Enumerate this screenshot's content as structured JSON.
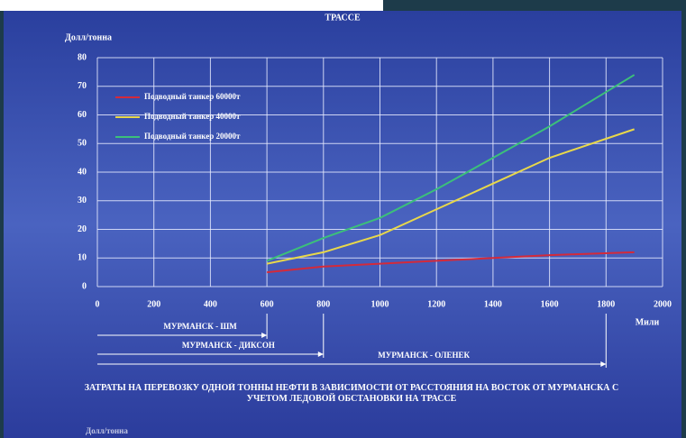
{
  "chart_data": {
    "type": "line",
    "title": "ТРАССЕ",
    "y_label": "Долл/тонна",
    "x_label": "Мили",
    "footer": "Долл/тонна",
    "caption": "ЗАТРАТЫ НА ПЕРЕВОЗКУ ОДНОЙ ТОННЫ НЕФТИ В ЗАВИСИМОСТИ ОТ РАССТОЯНИЯ НА ВОСТОК ОТ МУРМАНСКА С УЧЕТОМ ЛЕДОВОЙ ОБСТАНОВКИ НА ТРАССЕ",
    "x": [
      600,
      800,
      1000,
      1200,
      1400,
      1600,
      1900
    ],
    "series": [
      {
        "name": "Подводный танкер 60000т",
        "color": "#d42a3a",
        "values": [
          5,
          7,
          8,
          9,
          10,
          11,
          12
        ]
      },
      {
        "name": "Подводный танкер 40000т",
        "color": "#e8d84a",
        "values": [
          8,
          12,
          18,
          27,
          36,
          45,
          55
        ]
      },
      {
        "name": "Подводный танкер 20000т",
        "color": "#3cc07a",
        "values": [
          9,
          17,
          24,
          34,
          45,
          56,
          74
        ]
      }
    ],
    "xlim": [
      0,
      2000
    ],
    "xticks": [
      0,
      200,
      400,
      600,
      800,
      1000,
      1200,
      1400,
      1600,
      1800,
      2000
    ],
    "ylim": [
      0,
      80
    ],
    "yticks": [
      0,
      10,
      20,
      30,
      40,
      50,
      60,
      70,
      80
    ],
    "grid": true,
    "ranges": [
      {
        "label": "МУРМАНСК - ШМ",
        "end": 600
      },
      {
        "label": "МУРМАНСК - ДИКСОН",
        "end": 800
      },
      {
        "label": "МУРМАНСК - ОЛЕНЕК",
        "end": 1800
      }
    ]
  }
}
